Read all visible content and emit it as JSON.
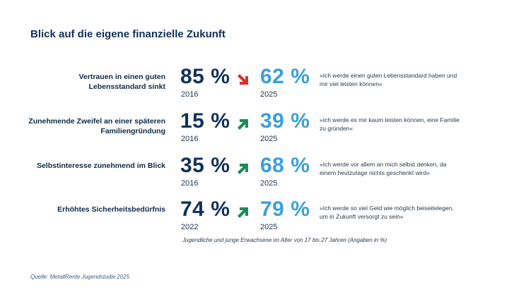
{
  "title": "Blick auf die eigene finanzielle Zukunft",
  "colors": {
    "old_value": "#12315a",
    "new_value": "#3aa0dc",
    "arrow_down": "#d9302b",
    "arrow_up": "#1f8a5b"
  },
  "chart_data": {
    "type": "table",
    "title": "Blick auf die eigene finanzielle Zukunft",
    "unit": "%",
    "rows": [
      {
        "label": "Vertrauen in einen guten Lebensstandard sinkt",
        "old_value": 85,
        "old_display": "85 %",
        "old_year": "2016",
        "new_value": 62,
        "new_display": "62 %",
        "new_year": "2025",
        "trend": "down",
        "arrow_icon": "arrow-down-right-icon",
        "quote": "»Ich werde einen guten Lebensstandard haben und mir viel leisten können«"
      },
      {
        "label": "Zunehmende Zweifel an einer späteren Familiengründung",
        "old_value": 15,
        "old_display": "15 %",
        "old_year": "2016",
        "new_value": 39,
        "new_display": "39 %",
        "new_year": "2025",
        "trend": "up",
        "arrow_icon": "arrow-up-right-icon",
        "quote": "»Ich werde es mir kaum leisten können, eine Familie zu gründen«"
      },
      {
        "label": "Selbstinteresse zunehmend im Blick",
        "old_value": 35,
        "old_display": "35 %",
        "old_year": "2016",
        "new_value": 68,
        "new_display": "68 %",
        "new_year": "2025",
        "trend": "up",
        "arrow_icon": "arrow-up-right-icon",
        "quote": "»Ich werde vor allem an mich selbst denken, da einem heutzutage nichts geschenkt wird«"
      },
      {
        "label": "Erhöhtes Sicherheitsbedürfnis",
        "old_value": 74,
        "old_display": "74 %",
        "old_year": "2022",
        "new_value": 79,
        "new_display": "79 %",
        "new_year": "2025",
        "trend": "up",
        "arrow_icon": "arrow-up-right-icon",
        "quote": "»Ich werde so viel Geld wie möglich beiseitelegen, um in Zukunft versorgt zu sein«"
      }
    ]
  },
  "footnote": "Jugendliche und junge Erwachsene im Alter von 17 bis 27 Jahren (Angaben in %)",
  "source": "Quelle: MetallRente Jugendstudie 2025"
}
